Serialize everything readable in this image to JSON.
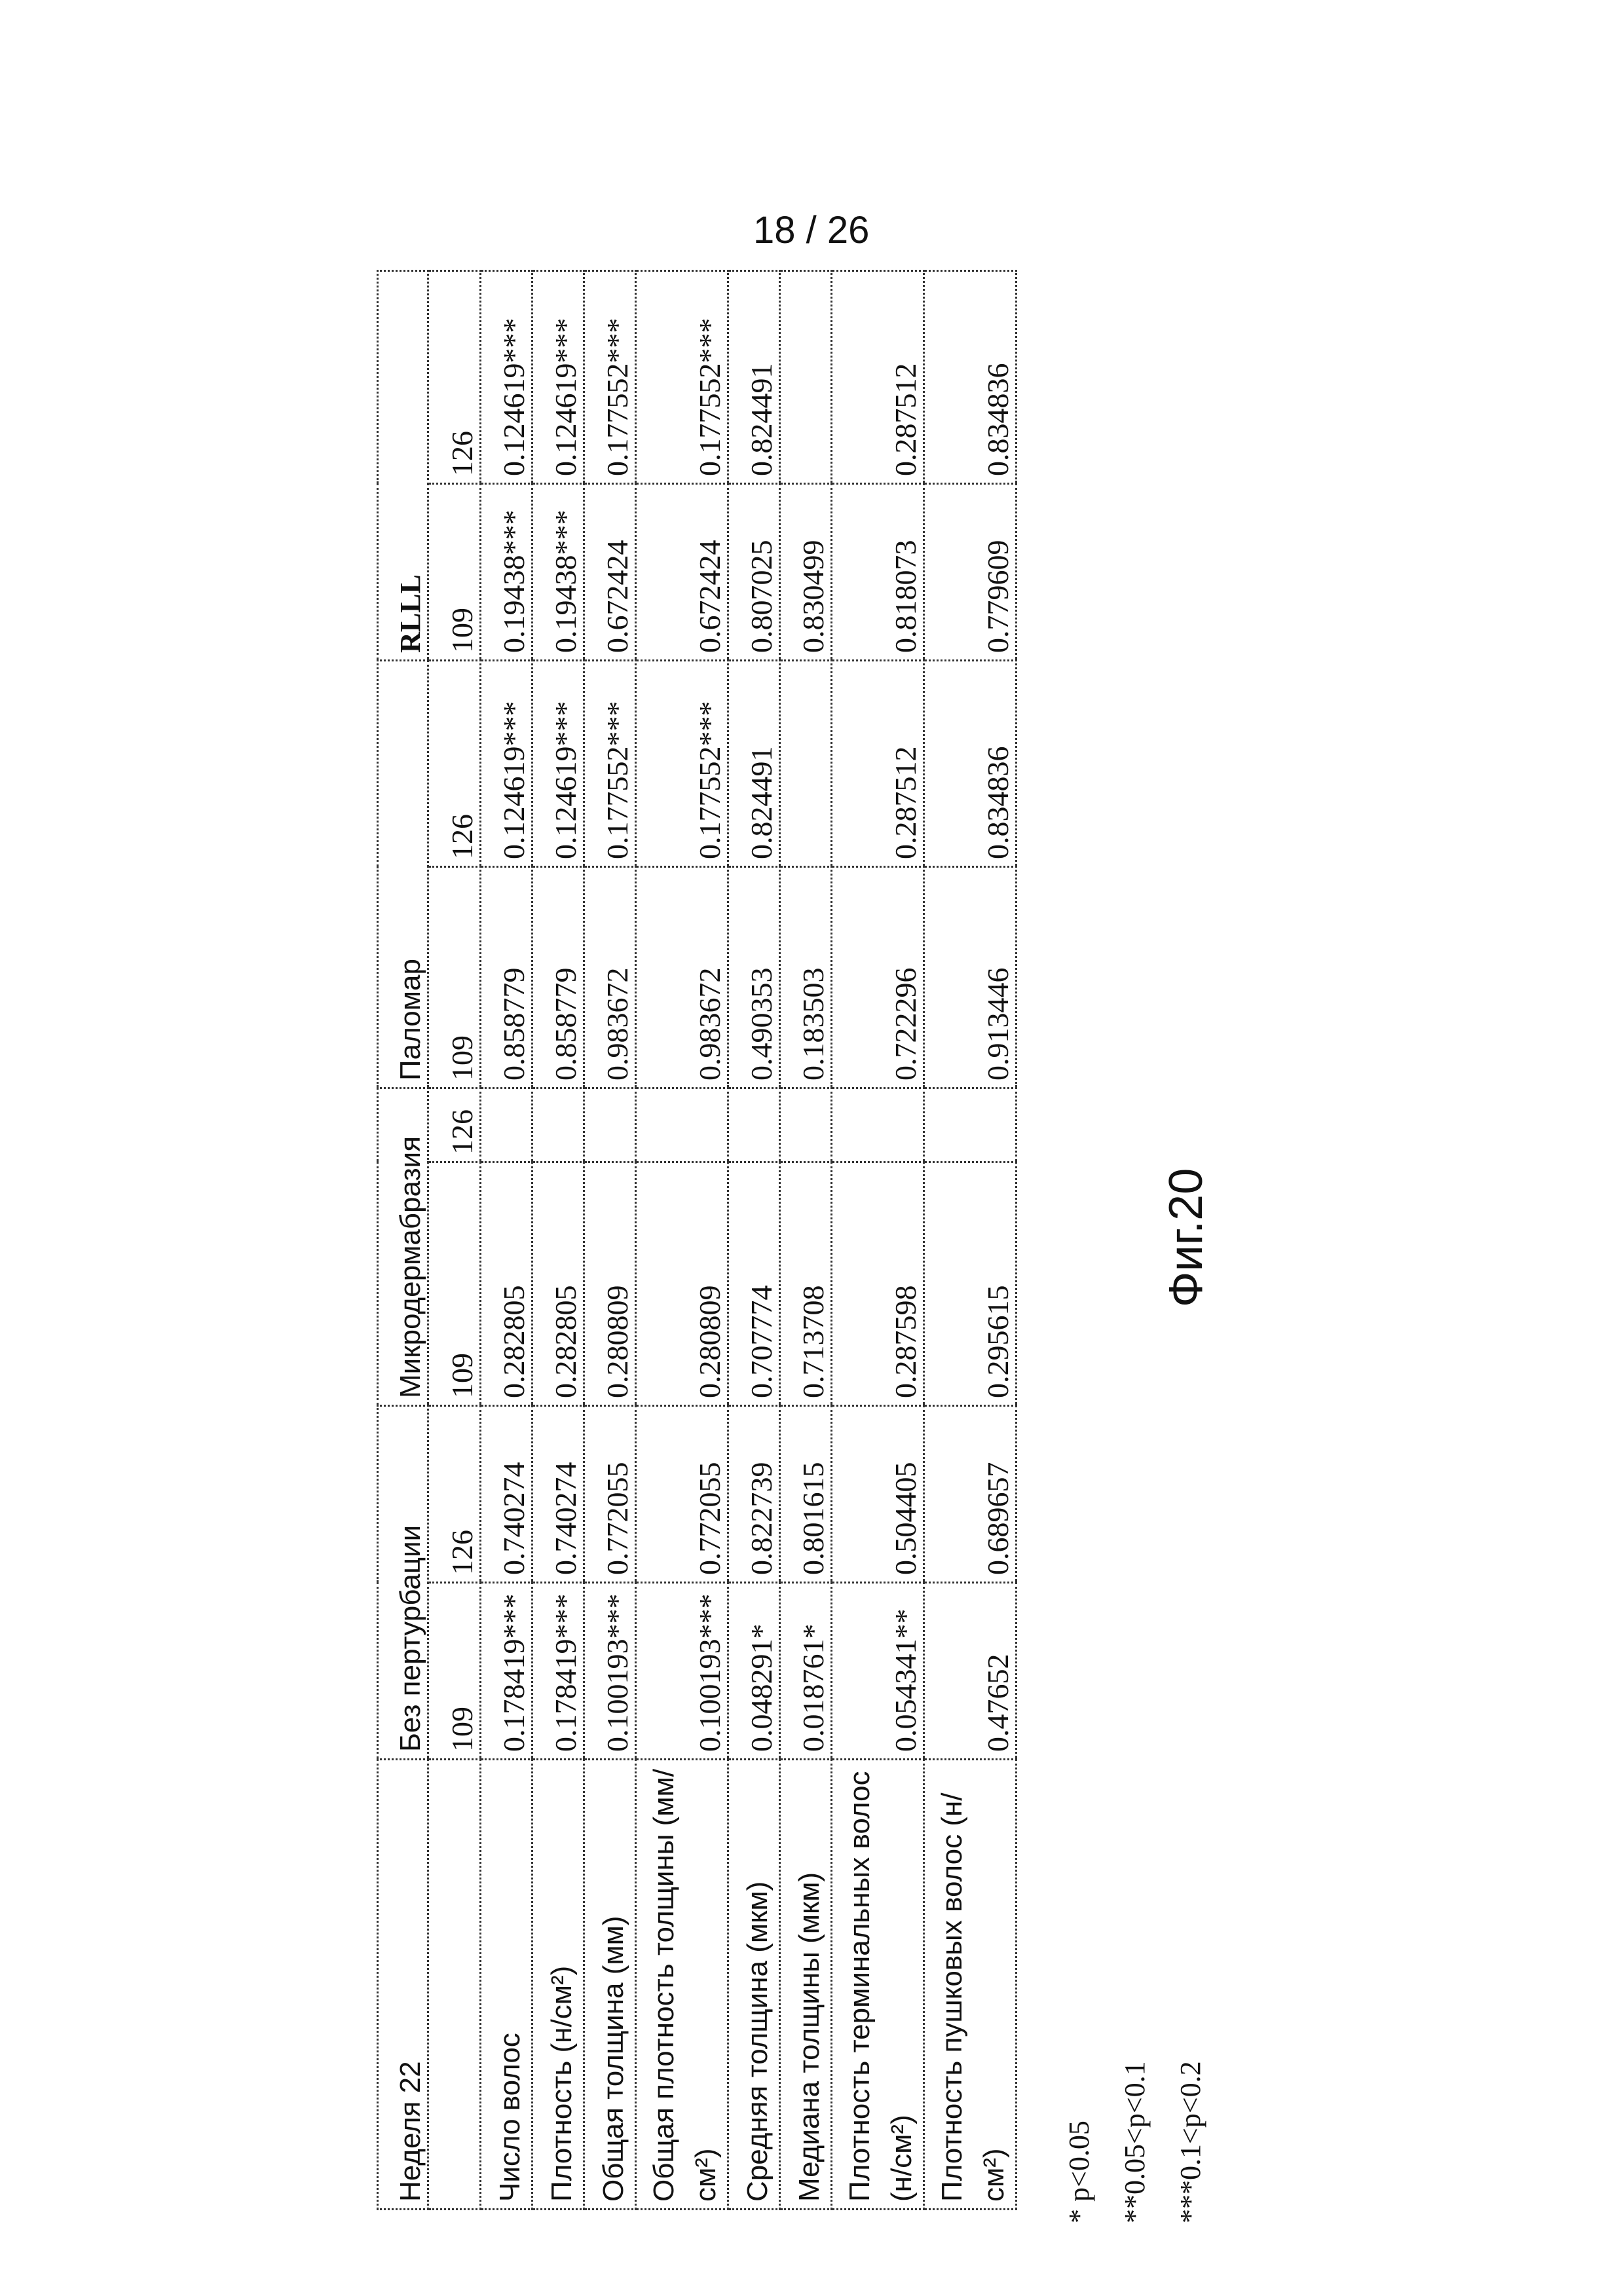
{
  "page_number": "18 / 26",
  "table": {
    "corner": "Неделя 22",
    "groups": [
      "Без пертурбации",
      "Микродермабразия",
      "Паломар",
      "RLLL"
    ],
    "subheaders": [
      "109",
      "126",
      "109",
      "126",
      "109",
      "126",
      "109",
      "126"
    ],
    "rows": [
      {
        "label": "Число волос",
        "values": [
          "0.178419***",
          "0.740274",
          "0.282805",
          "",
          "0.858779",
          "0.124619***",
          "0.19438***",
          "0.124619***"
        ]
      },
      {
        "label": "Плотность (н/см²)",
        "values": [
          "0.178419***",
          "0.740274",
          "0.282805",
          "",
          "0.858779",
          "0.124619***",
          "0.19438***",
          "0.124619***"
        ]
      },
      {
        "label": "Общая толщина (мм)",
        "values": [
          "0.100193***",
          "0.772055",
          "0.280809",
          "",
          "0.983672",
          "0.177552***",
          "0.672424",
          "0.177552***"
        ]
      },
      {
        "label": "Общая плотность толщины (мм/см²)",
        "values": [
          "0.100193***",
          "0.772055",
          "0.280809",
          "",
          "0.983672",
          "0.177552***",
          "0.672424",
          "0.177552***"
        ]
      },
      {
        "label": "Средняя толщина (мкм)",
        "values": [
          "0.048291*",
          "0.822739",
          "0.707774",
          "",
          "0.490353",
          "0.824491",
          "0.807025",
          "0.824491"
        ]
      },
      {
        "label": "Медиана толщины (мкм)",
        "values": [
          "0.018761*",
          "0.801615",
          "0.713708",
          "",
          "0.183503",
          "",
          "0.830499",
          ""
        ]
      },
      {
        "label": "Плотность терминальных волос (н/см²)",
        "values": [
          "0.054341**",
          "0.504405",
          "0.287598",
          "",
          "0.722296",
          "0.287512",
          "0.818073",
          "0.287512"
        ]
      },
      {
        "label": "Плотность пушковых волос (н/см²)",
        "values": [
          "0.47652",
          "0.689657",
          "0.295615",
          "",
          "0.913446",
          "0.834836",
          "0.779609",
          "0.834836"
        ]
      }
    ]
  },
  "footnotes": [
    "* p<0.05",
    "**0.05<p<0.1",
    "***0.1<p<0.2"
  ],
  "figure_label": "Фиг.20"
}
